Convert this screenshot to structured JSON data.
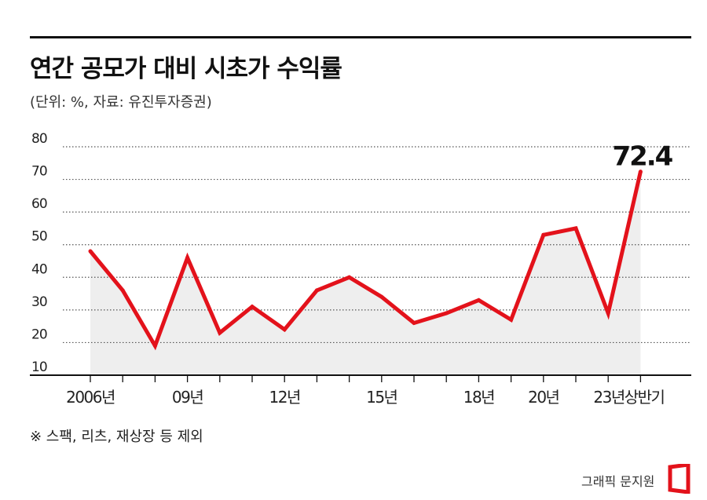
{
  "header": {
    "title": "연간 공모가 대비 시초가 수익률",
    "subtitle": "(단위: %, 자료: 유진투자증권)"
  },
  "note": "※ 스팩, 리츠, 재상장 등 제외",
  "credit": "그래픽 문지원",
  "colors": {
    "line": "#e3121b",
    "area": "#eeeeee",
    "grid": "#555555"
  },
  "chart_data": {
    "type": "area",
    "x": [
      2006,
      2007,
      2008,
      2009,
      2010,
      2011,
      2012,
      2013,
      2014,
      2015,
      2016,
      2017,
      2018,
      2019,
      2020,
      2021,
      2022,
      2023
    ],
    "values": [
      48,
      36,
      19,
      46,
      23,
      31,
      24,
      36,
      40,
      34,
      26,
      29,
      33,
      27,
      53,
      55,
      29,
      72.4
    ],
    "ylim": [
      10,
      80
    ],
    "yticks": [
      10,
      20,
      30,
      40,
      50,
      60,
      70,
      80
    ],
    "x_labels": [
      {
        "x": 2006,
        "label": "2006년"
      },
      {
        "x": 2009,
        "label": "09년"
      },
      {
        "x": 2012,
        "label": "12년"
      },
      {
        "x": 2015,
        "label": "15년"
      },
      {
        "x": 2018,
        "label": "18년"
      },
      {
        "x": 2020,
        "label": "20년"
      },
      {
        "x": 2023,
        "label": "23년상반기"
      }
    ],
    "annotation": {
      "x": 2023,
      "text": "72.4"
    },
    "grid": true
  }
}
